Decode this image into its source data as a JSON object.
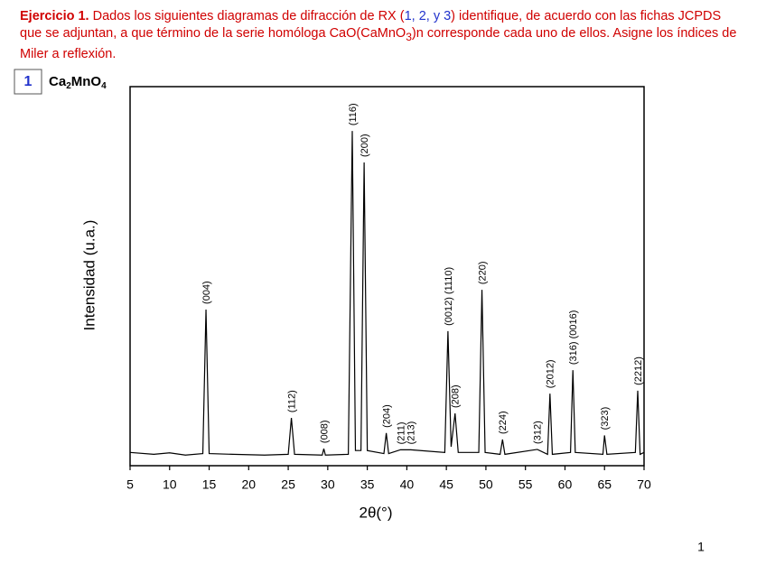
{
  "header": {
    "parts": [
      "Ejercicio 1.",
      "Dados los siguientes diagramas de difracción de RX (",
      "1, 2, y 3",
      ") identifique, de acuerdo con las fichas JCPDS que se adjuntan, a que término de la serie homóloga CaO(CaMnO",
      "3",
      ")n corresponde cada uno de ellos. Asigne los índices de Miler a reflexión."
    ]
  },
  "figure": {
    "number": "1",
    "compound": [
      "Ca",
      "2",
      "MnO",
      "4"
    ]
  },
  "chart_data": {
    "type": "line",
    "xlabel": "2θ(°)",
    "ylabel": "Intensidad (u.a.)",
    "color": "#000000",
    "xlim": [
      5,
      70
    ],
    "ylim": [
      0,
      100
    ],
    "xticks": [
      5,
      10,
      15,
      20,
      25,
      30,
      35,
      40,
      45,
      50,
      55,
      60,
      65,
      70
    ],
    "x": [
      5,
      8,
      10,
      12,
      14.2,
      14.6,
      15.0,
      18,
      22,
      25.0,
      25.4,
      25.8,
      29.3,
      29.5,
      29.7,
      32.6,
      33.1,
      33.5,
      34.2,
      34.6,
      35.0,
      37.1,
      37.4,
      37.7,
      39.2,
      40.5,
      44.8,
      45.2,
      45.6,
      46.1,
      46.5,
      49.1,
      49.5,
      49.9,
      51.8,
      52.1,
      52.4,
      56.5,
      57.8,
      58.1,
      58.4,
      60.7,
      61.0,
      61.3,
      64.8,
      65.0,
      65.3,
      68.9,
      69.2,
      69.5,
      70
    ],
    "values": [
      3.5,
      3,
      3.4,
      2.8,
      3.2,
      41.2,
      3.2,
      3,
      2.8,
      3.0,
      12.6,
      3,
      2.8,
      4.5,
      2.8,
      3,
      88.3,
      4,
      4,
      80,
      4,
      3.2,
      8.6,
      3.2,
      4.2,
      4.2,
      3.5,
      35.5,
      5,
      13.8,
      3.5,
      3.5,
      46.4,
      3.5,
      3,
      6.9,
      3,
      4.3,
      3,
      19,
      3,
      3.5,
      25.2,
      3.5,
      3,
      8,
      3,
      3.5,
      19.8,
      3,
      3.5
    ],
    "annotations": [
      {
        "text": "(004)",
        "x": 14.6,
        "y": 41.2
      },
      {
        "text": "(112)",
        "x": 25.4,
        "y": 12.6
      },
      {
        "text": "(008)",
        "x": 29.5,
        "y": 4.5
      },
      {
        "text": "(116)",
        "x": 33.1,
        "y": 88.3
      },
      {
        "text": "(200)",
        "x": 34.6,
        "y": 80
      },
      {
        "text": "(204)",
        "x": 37.4,
        "y": 8.6
      },
      {
        "text": "(211)",
        "x": 39.2,
        "y": 4.2
      },
      {
        "text": "(213)",
        "x": 40.5,
        "y": 4.2
      },
      {
        "text": "(0012) (1110)",
        "x": 45.2,
        "y": 35.5
      },
      {
        "text": "(208)",
        "x": 46.1,
        "y": 13.8
      },
      {
        "text": "(220)",
        "x": 49.5,
        "y": 46.4
      },
      {
        "text": "(224)",
        "x": 52.1,
        "y": 6.9
      },
      {
        "text": "(312)",
        "x": 56.5,
        "y": 4.3
      },
      {
        "text": "(2012)",
        "x": 58.1,
        "y": 19
      },
      {
        "text": "(316) (0016)",
        "x": 61.0,
        "y": 25.2
      },
      {
        "text": "(323)",
        "x": 65.0,
        "y": 8
      },
      {
        "text": "(2212)",
        "x": 69.2,
        "y": 19.8
      }
    ]
  },
  "page_number": "1"
}
